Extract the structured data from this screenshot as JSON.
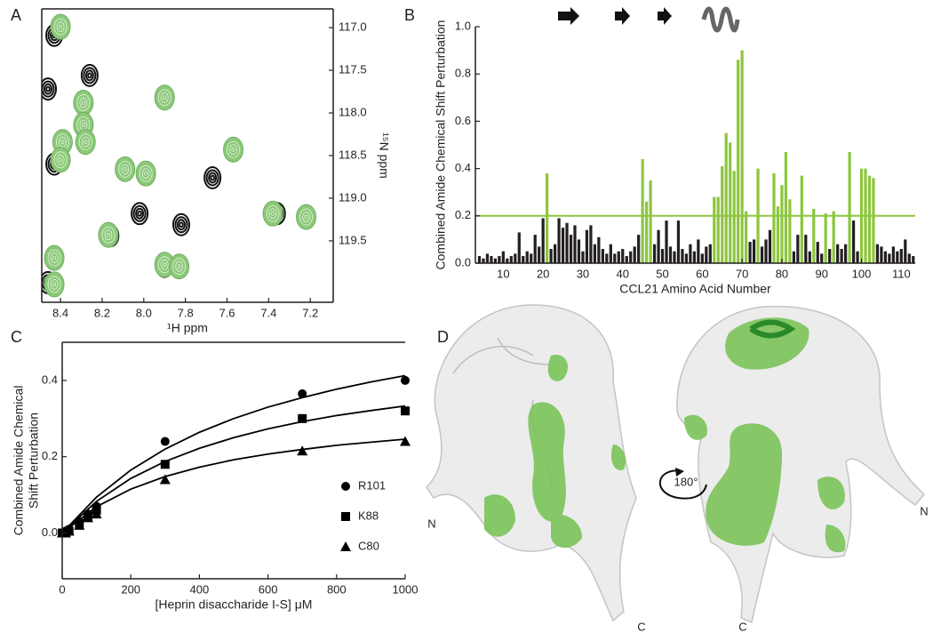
{
  "chart_data": [
    {
      "type": "contour",
      "panel": "A",
      "xlabel": "¹H ppm",
      "ylabel": "¹⁵N ppm",
      "xlim": [
        8.49,
        7.09
      ],
      "ylim": [
        120.22,
        116.78
      ],
      "xticks": [
        8.4,
        8.2,
        {
          "value": 8,
          "label": "8.0"
        },
        7.8,
        7.6,
        7.4,
        7.2
      ],
      "yticks": [
        {
          "value": 117,
          "label": "117.0"
        },
        117.5,
        {
          "value": 118,
          "label": "118.0"
        },
        118.5,
        {
          "value": 119,
          "label": "119.0"
        },
        119.5
      ],
      "series": [
        {
          "color": "#111111",
          "x": [
            8.43,
            8.26,
            8.46,
            8.43,
            8.02,
            7.67,
            7.82,
            7.36,
            8.16,
            7.9,
            8.46
          ],
          "values": [
            117.09,
            117.56,
            117.72,
            118.6,
            119.18,
            118.76,
            119.31,
            119.18,
            119.44,
            119.8,
            119.99
          ]
        },
        {
          "color": "#8cc97a",
          "x": [
            8.4,
            8.29,
            8.29,
            8.28,
            8.39,
            8.4,
            7.9,
            7.57,
            8.09,
            7.99,
            7.38,
            7.22,
            8.17,
            7.9,
            7.83,
            8.43,
            8.43
          ],
          "values": [
            116.99,
            117.88,
            118.14,
            118.34,
            118.34,
            118.55,
            117.82,
            118.43,
            118.66,
            118.71,
            119.18,
            119.22,
            119.43,
            119.78,
            119.8,
            119.7,
            120.01
          ]
        }
      ]
    },
    {
      "type": "bar",
      "panel": "B",
      "xlabel": "CCL21 Amino Acid Number",
      "ylabel": "Combined Amide Chemical Shift Perturbation",
      "xlim": [
        3,
        113.5
      ],
      "ylim": [
        0,
        1
      ],
      "xticks": [
        10,
        20,
        30,
        40,
        50,
        60,
        70,
        80,
        90,
        100,
        110
      ],
      "yticks": [
        {
          "value": 0,
          "label": "0.0"
        },
        0.2,
        0.4,
        0.6,
        0.8,
        {
          "value": 1,
          "label": "1.0"
        }
      ],
      "threshold": 0.2,
      "color": "#231f20",
      "highlight_color": "#8dc63f",
      "x": [
        4,
        5,
        6,
        7,
        8,
        9,
        10,
        11,
        12,
        13,
        14,
        15,
        16,
        17,
        18,
        19,
        20,
        21,
        22,
        23,
        24,
        25,
        26,
        27,
        28,
        29,
        30,
        31,
        32,
        33,
        34,
        35,
        36,
        37,
        38,
        39,
        40,
        41,
        42,
        43,
        44,
        45,
        46,
        47,
        48,
        49,
        50,
        51,
        52,
        53,
        54,
        55,
        56,
        57,
        58,
        59,
        60,
        61,
        62,
        63,
        64,
        65,
        66,
        67,
        68,
        69,
        70,
        71,
        72,
        73,
        74,
        75,
        76,
        77,
        78,
        79,
        80,
        81,
        82,
        83,
        84,
        85,
        86,
        87,
        88,
        89,
        90,
        91,
        92,
        93,
        94,
        95,
        96,
        97,
        98,
        99,
        100,
        101,
        102,
        103,
        104,
        105,
        106,
        107,
        108,
        109,
        110,
        111,
        112,
        113
      ],
      "values": [
        0.03,
        0.02,
        0.04,
        0.03,
        0.02,
        0.03,
        0.05,
        0.02,
        0.03,
        0.04,
        0.13,
        0.03,
        0.05,
        0.04,
        0.12,
        0.07,
        0.19,
        0.38,
        0.06,
        0.08,
        0.19,
        0.15,
        0.17,
        0.12,
        0.16,
        0.1,
        0.05,
        0.14,
        0.16,
        0.08,
        0.11,
        0.06,
        0.04,
        0.08,
        0.04,
        0.05,
        0.06,
        0.03,
        0.05,
        0.07,
        0.12,
        0.44,
        0.26,
        0.35,
        0.08,
        0.14,
        0.06,
        0.18,
        0.07,
        0.05,
        0.18,
        0.06,
        0.04,
        0.08,
        0.05,
        0.1,
        0.04,
        0.07,
        0.08,
        0.28,
        0.28,
        0.41,
        0.55,
        0.51,
        0.39,
        0.86,
        0.9,
        0.22,
        0.09,
        0.1,
        0.4,
        0.07,
        0.1,
        0.14,
        0.38,
        0.24,
        0.33,
        0.47,
        0.27,
        0.05,
        0.12,
        0.37,
        0.12,
        0.05,
        0.23,
        0.09,
        0.04,
        0.21,
        0.06,
        0.22,
        0.08,
        0.06,
        0.08,
        0.47,
        0.18,
        0.05,
        0.4,
        0.4,
        0.37,
        0.36,
        0.08,
        0.07,
        0.05,
        0.04,
        0.07,
        0.05,
        0.06,
        0.1,
        0.04,
        0.03
      ]
    },
    {
      "type": "scatter",
      "panel": "C",
      "xlabel": "[Heprin disaccharide I-S] μM",
      "ylabel": [
        "Combined Amide Chemical",
        "Shift Perturbation"
      ],
      "xlim": [
        0,
        1000
      ],
      "ylim": [
        -0.12,
        0.5
      ],
      "xticks": [
        0,
        200,
        400,
        600,
        800,
        1000
      ],
      "yticks": [
        {
          "value": 0,
          "label": "0.0"
        },
        0.2,
        0.4
      ],
      "x": [
        0,
        10,
        20,
        50,
        75,
        100,
        300,
        700,
        1000
      ],
      "fit_x": [
        0,
        100,
        200,
        300,
        400,
        500,
        600,
        700,
        800,
        900,
        1000
      ],
      "series": [
        {
          "name": "R101",
          "marker": "circle",
          "color": "#000000",
          "values": [
            0,
            0.005,
            0.01,
            0.03,
            0.05,
            0.07,
            0.24,
            0.365,
            0.4
          ],
          "fit": [
            0,
            0.094,
            0.165,
            0.22,
            0.264,
            0.3,
            0.33,
            0.355,
            0.377,
            0.396,
            0.4125
          ]
        },
        {
          "name": "K88",
          "marker": "square",
          "color": "#000000",
          "values": [
            0,
            0,
            0.005,
            0.025,
            0.045,
            0.06,
            0.18,
            0.3,
            0.32
          ],
          "fit": [
            0,
            0.083,
            0.143,
            0.1875,
            0.222,
            0.25,
            0.273,
            0.292,
            0.308,
            0.321,
            0.333
          ]
        },
        {
          "name": "C80",
          "marker": "triangle",
          "color": "#000000",
          "values": [
            0,
            0,
            0.005,
            0.02,
            0.04,
            0.05,
            0.14,
            0.215,
            0.24
          ],
          "fit": [
            0,
            0.069,
            0.115,
            0.148,
            0.1725,
            0.192,
            0.207,
            0.219,
            0.23,
            0.238,
            0.246
          ]
        }
      ]
    }
  ],
  "panel_d": {
    "label": "D",
    "left_n": "N",
    "left_c": "C",
    "rotation": "180°",
    "right_n": "N",
    "right_c": "C"
  }
}
